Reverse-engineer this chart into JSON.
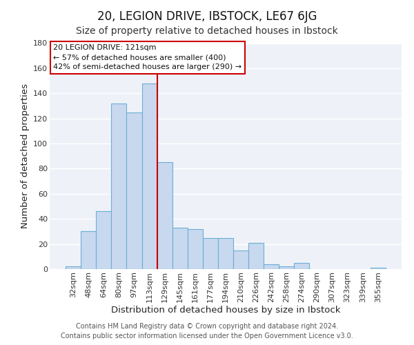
{
  "title": "20, LEGION DRIVE, IBSTOCK, LE67 6JG",
  "subtitle": "Size of property relative to detached houses in Ibstock",
  "xlabel": "Distribution of detached houses by size in Ibstock",
  "ylabel": "Number of detached properties",
  "bar_labels": [
    "32sqm",
    "48sqm",
    "64sqm",
    "80sqm",
    "97sqm",
    "113sqm",
    "129sqm",
    "145sqm",
    "161sqm",
    "177sqm",
    "194sqm",
    "210sqm",
    "226sqm",
    "242sqm",
    "258sqm",
    "274sqm",
    "290sqm",
    "307sqm",
    "323sqm",
    "339sqm",
    "355sqm"
  ],
  "bar_values": [
    2,
    30,
    46,
    132,
    125,
    148,
    85,
    33,
    32,
    25,
    25,
    15,
    21,
    4,
    2,
    5,
    0,
    0,
    0,
    0,
    1
  ],
  "bar_color": "#c8d8ee",
  "bar_edge_color": "#6baed6",
  "ylim": [
    0,
    180
  ],
  "yticks": [
    0,
    20,
    40,
    60,
    80,
    100,
    120,
    140,
    160,
    180
  ],
  "vline_x": 5.5,
  "vline_color": "#cc0000",
  "annotation_title": "20 LEGION DRIVE: 121sqm",
  "annotation_line1": "← 57% of detached houses are smaller (400)",
  "annotation_line2": "42% of semi-detached houses are larger (290) →",
  "annotation_box_color": "#ffffff",
  "annotation_box_edge": "#cc0000",
  "footer_line1": "Contains HM Land Registry data © Crown copyright and database right 2024.",
  "footer_line2": "Contains public sector information licensed under the Open Government Licence v3.0.",
  "fig_background_color": "#ffffff",
  "plot_background_color": "#eef2f8",
  "grid_color": "#ffffff",
  "title_fontsize": 12,
  "subtitle_fontsize": 10,
  "axis_label_fontsize": 9.5,
  "tick_fontsize": 8,
  "annotation_fontsize": 8,
  "footer_fontsize": 7
}
